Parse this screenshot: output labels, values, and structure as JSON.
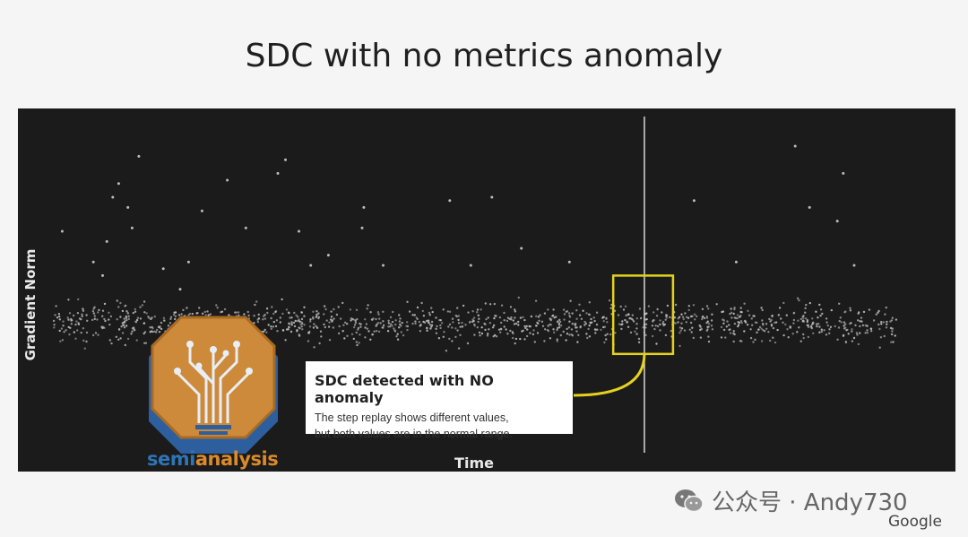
{
  "page": {
    "title": "SDC with no metrics anomaly",
    "brand": "Google",
    "watermark": "公众号 · Andy730",
    "watermark_icon": "wechat-icon"
  },
  "chart_data": {
    "type": "scatter",
    "title": "SDC with no metrics anomaly",
    "xlabel": "Time",
    "ylabel": "Gradient Norm",
    "xlim": [
      0,
      1000
    ],
    "ylim": [
      0,
      100
    ],
    "grid": false,
    "background": "#1b1b1b",
    "point_color": "#bdbdbd",
    "band": {
      "x_start": 0,
      "x_end": 1000,
      "y_center": 38,
      "y_spread": 6,
      "approx_points": 1200
    },
    "outliers": [
      {
        "x": 10,
        "y": 65
      },
      {
        "x": 47,
        "y": 56
      },
      {
        "x": 58,
        "y": 52
      },
      {
        "x": 63,
        "y": 62
      },
      {
        "x": 70,
        "y": 75
      },
      {
        "x": 77,
        "y": 79
      },
      {
        "x": 88,
        "y": 72
      },
      {
        "x": 93,
        "y": 66
      },
      {
        "x": 101,
        "y": 87
      },
      {
        "x": 130,
        "y": 54
      },
      {
        "x": 150,
        "y": 48
      },
      {
        "x": 160,
        "y": 56
      },
      {
        "x": 176,
        "y": 71
      },
      {
        "x": 206,
        "y": 80
      },
      {
        "x": 228,
        "y": 66
      },
      {
        "x": 266,
        "y": 82
      },
      {
        "x": 275,
        "y": 86
      },
      {
        "x": 291,
        "y": 65
      },
      {
        "x": 305,
        "y": 55
      },
      {
        "x": 326,
        "y": 58
      },
      {
        "x": 366,
        "y": 66
      },
      {
        "x": 368,
        "y": 72
      },
      {
        "x": 391,
        "y": 55
      },
      {
        "x": 470,
        "y": 74
      },
      {
        "x": 495,
        "y": 55
      },
      {
        "x": 520,
        "y": 75
      },
      {
        "x": 555,
        "y": 60
      },
      {
        "x": 612,
        "y": 56
      },
      {
        "x": 760,
        "y": 74
      },
      {
        "x": 810,
        "y": 56
      },
      {
        "x": 880,
        "y": 90
      },
      {
        "x": 897,
        "y": 72
      },
      {
        "x": 930,
        "y": 68
      },
      {
        "x": 937,
        "y": 82
      },
      {
        "x": 950,
        "y": 55
      }
    ],
    "marker": {
      "x": 701,
      "label": "vertical marker"
    },
    "highlight": {
      "x_start": 664,
      "x_end": 735,
      "y_start": 29,
      "y_end": 52,
      "color": "#e4d21f"
    },
    "annotation": {
      "title": "SDC detected with NO anomaly",
      "lines": [
        "The step replay shows different values,",
        "but both values are in the normal range."
      ],
      "connector_color": "#e4d21f"
    },
    "overlay_logo": {
      "text_part1": "semi",
      "text_part2": "analysis",
      "color1": "#2f74b5",
      "color2": "#d98a2a"
    }
  }
}
